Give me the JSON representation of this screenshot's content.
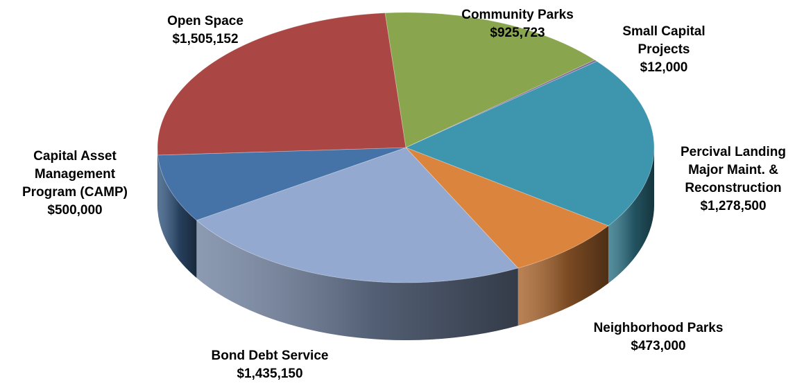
{
  "chart_data": {
    "type": "pie",
    "title": "",
    "slices": [
      {
        "label_lines": [
          "Community Parks"
        ],
        "value_text": "$925,723",
        "value": 925723,
        "color": "#89A54E"
      },
      {
        "label_lines": [
          "Small Capital",
          "Projects"
        ],
        "value_text": "$12,000",
        "value": 12000,
        "color": "#7E6A9A"
      },
      {
        "label_lines": [
          "Percival Landing",
          "Major Maint. &",
          "Reconstruction"
        ],
        "value_text": "$1,278,500",
        "value": 1278500,
        "color": "#3D96AE"
      },
      {
        "label_lines": [
          "Neighborhood Parks"
        ],
        "value_text": "$473,000",
        "value": 473000,
        "color": "#DB843D"
      },
      {
        "label_lines": [
          "Bond Debt Service"
        ],
        "value_text": "$1,435,150",
        "value": 1435150,
        "color": "#93A9CF"
      },
      {
        "label_lines": [
          "Capital Asset",
          "Management",
          "Program (CAMP)"
        ],
        "value_text": "$500,000",
        "value": 500000,
        "color": "#4572A7"
      },
      {
        "label_lines": [
          "Open Space"
        ],
        "value_text": "$1,505,152",
        "value": 1505152,
        "color": "#AA4643"
      }
    ]
  }
}
